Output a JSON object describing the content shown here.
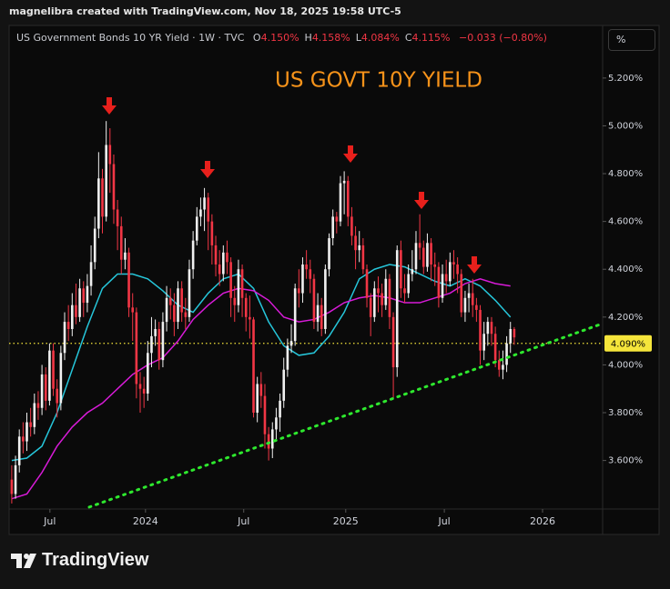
{
  "header": {
    "credit": "magnelibra created with TradingView.com, Nov 18, 2025 19:58 UTC-5"
  },
  "footer": {
    "brand": "TradingView"
  },
  "chart_data": {
    "type": "candlestick",
    "title": "US GOVT 10Y YIELD",
    "symbol": "US Government Bonds 10 YR Yield · 1W · TVC",
    "ohlc_legend": [
      {
        "key": "O",
        "value": "4.150%"
      },
      {
        "key": "H",
        "value": "4.158%"
      },
      {
        "key": "L",
        "value": "4.084%"
      },
      {
        "key": "C",
        "value": "4.115%"
      }
    ],
    "change": "−0.033 (−0.80%)",
    "unit_button": "%",
    "up_color": "#f0f0f0",
    "down_color": "#f23645",
    "open": [
      3.52,
      3.46,
      3.58,
      3.7,
      3.68,
      3.76,
      3.74,
      3.84,
      3.82,
      3.96,
      3.85,
      4.06,
      3.9,
      3.84,
      4.05,
      4.18,
      4.15,
      4.25,
      4.2,
      4.32,
      4.26,
      4.33,
      4.43,
      4.57,
      4.78,
      4.62,
      4.92,
      4.84,
      4.65,
      4.58,
      4.44,
      4.47,
      4.24,
      4.22,
      3.92,
      3.9,
      3.88,
      4.05,
      4.12,
      4.15,
      4.02,
      4.18,
      4.28,
      4.25,
      4.18,
      4.32,
      4.22,
      4.2,
      4.4,
      4.52,
      4.62,
      4.65,
      4.7,
      4.6,
      4.5,
      4.42,
      4.38,
      4.47,
      4.43,
      4.28,
      4.25,
      4.4,
      4.28,
      4.2,
      4.19,
      3.8,
      3.92,
      3.87,
      3.71,
      3.65,
      3.73,
      3.78,
      3.85,
      3.98,
      4.08,
      4.1,
      4.32,
      4.3,
      4.42,
      4.4,
      4.36,
      4.18,
      4.25,
      4.15,
      4.4,
      4.53,
      4.62,
      4.6,
      4.76,
      4.77,
      4.62,
      4.54,
      4.48,
      4.5,
      4.4,
      4.28,
      4.2,
      4.32,
      4.3,
      4.25,
      4.36,
      4.2,
      3.99,
      4.48,
      4.32,
      4.3,
      4.38,
      4.4,
      4.51,
      4.49,
      4.41,
      4.51,
      4.42,
      4.41,
      4.28,
      4.38,
      4.35,
      4.43,
      4.42,
      4.38,
      4.22,
      4.28,
      4.3,
      4.25,
      4.23,
      4.06,
      4.13,
      4.18,
      4.13,
      4.02,
      3.98,
      4.0,
      4.09,
      4.15
    ],
    "high": [
      3.58,
      3.62,
      3.73,
      3.76,
      3.8,
      3.82,
      3.88,
      3.89,
      4.0,
      3.99,
      4.09,
      4.09,
      3.94,
      4.08,
      4.22,
      4.25,
      4.3,
      4.34,
      4.36,
      4.35,
      4.38,
      4.5,
      4.62,
      4.89,
      4.82,
      5.02,
      4.99,
      4.88,
      4.69,
      4.62,
      4.53,
      4.49,
      4.3,
      4.24,
      3.97,
      3.95,
      4.1,
      4.2,
      4.19,
      4.18,
      4.22,
      4.33,
      4.32,
      4.3,
      4.35,
      4.35,
      4.28,
      4.44,
      4.56,
      4.66,
      4.7,
      4.74,
      4.72,
      4.63,
      4.54,
      4.48,
      4.5,
      4.52,
      4.45,
      4.33,
      4.44,
      4.42,
      4.3,
      4.29,
      4.2,
      3.95,
      3.97,
      3.92,
      3.74,
      3.76,
      3.82,
      3.88,
      4.03,
      4.11,
      4.17,
      4.34,
      4.4,
      4.45,
      4.48,
      4.44,
      4.38,
      4.3,
      4.28,
      4.42,
      4.55,
      4.65,
      4.64,
      4.79,
      4.81,
      4.79,
      4.66,
      4.58,
      4.56,
      4.53,
      4.42,
      4.3,
      4.35,
      4.37,
      4.34,
      4.4,
      4.38,
      4.22,
      4.5,
      4.52,
      4.38,
      4.42,
      4.48,
      4.56,
      4.63,
      4.52,
      4.55,
      4.53,
      4.47,
      4.43,
      4.42,
      4.44,
      4.47,
      4.48,
      4.45,
      4.4,
      4.31,
      4.34,
      4.36,
      4.28,
      4.25,
      4.18,
      4.2,
      4.2,
      4.16,
      4.06,
      4.06,
      4.12,
      4.18,
      4.158
    ],
    "low": [
      3.42,
      3.44,
      3.55,
      3.63,
      3.64,
      3.7,
      3.71,
      3.77,
      3.79,
      3.81,
      3.83,
      3.87,
      3.78,
      3.81,
      4.02,
      4.1,
      4.12,
      4.17,
      4.18,
      4.2,
      4.22,
      4.29,
      4.4,
      4.53,
      4.55,
      4.6,
      4.72,
      4.59,
      4.48,
      4.38,
      4.4,
      4.2,
      4.1,
      3.86,
      3.8,
      3.82,
      3.85,
      3.99,
      4.08,
      3.98,
      3.99,
      4.14,
      4.19,
      4.12,
      4.15,
      4.18,
      4.15,
      4.18,
      4.36,
      4.5,
      4.58,
      4.56,
      4.48,
      4.42,
      4.37,
      4.33,
      4.35,
      4.38,
      4.2,
      4.18,
      4.22,
      4.2,
      4.14,
      4.11,
      3.78,
      3.76,
      3.82,
      3.65,
      3.6,
      3.61,
      3.68,
      3.72,
      3.82,
      3.95,
      4.05,
      4.08,
      4.24,
      4.26,
      4.36,
      4.3,
      4.15,
      4.14,
      4.12,
      4.13,
      4.37,
      4.5,
      4.55,
      4.58,
      4.63,
      4.58,
      4.5,
      4.4,
      4.43,
      4.38,
      4.24,
      4.12,
      4.18,
      4.22,
      4.2,
      4.23,
      4.15,
      3.86,
      3.95,
      4.28,
      4.26,
      4.28,
      4.35,
      4.38,
      4.44,
      4.38,
      4.39,
      4.35,
      4.33,
      4.24,
      4.26,
      4.3,
      4.33,
      4.36,
      4.3,
      4.2,
      4.18,
      4.22,
      4.2,
      4.18,
      4.0,
      4.02,
      4.08,
      4.08,
      3.99,
      3.95,
      3.94,
      3.97,
      4.05,
      4.084
    ],
    "close": [
      3.46,
      3.58,
      3.7,
      3.68,
      3.76,
      3.74,
      3.84,
      3.82,
      3.96,
      3.85,
      4.06,
      3.9,
      3.84,
      4.05,
      4.18,
      4.15,
      4.25,
      4.2,
      4.32,
      4.26,
      4.33,
      4.43,
      4.57,
      4.78,
      4.62,
      4.92,
      4.84,
      4.65,
      4.58,
      4.44,
      4.47,
      4.24,
      4.22,
      3.92,
      3.9,
      3.88,
      4.05,
      4.12,
      4.15,
      4.02,
      4.18,
      4.28,
      4.25,
      4.18,
      4.32,
      4.22,
      4.2,
      4.4,
      4.52,
      4.62,
      4.65,
      4.7,
      4.6,
      4.5,
      4.42,
      4.38,
      4.47,
      4.43,
      4.28,
      4.25,
      4.4,
      4.28,
      4.2,
      4.19,
      3.8,
      3.92,
      3.87,
      3.71,
      3.65,
      3.73,
      3.78,
      3.85,
      3.98,
      4.08,
      4.1,
      4.32,
      4.3,
      4.42,
      4.4,
      4.36,
      4.18,
      4.25,
      4.15,
      4.4,
      4.53,
      4.62,
      4.6,
      4.76,
      4.77,
      4.62,
      4.54,
      4.48,
      4.5,
      4.4,
      4.28,
      4.2,
      4.32,
      4.3,
      4.25,
      4.36,
      4.2,
      3.99,
      4.48,
      4.32,
      4.3,
      4.38,
      4.4,
      4.51,
      4.49,
      4.41,
      4.51,
      4.42,
      4.41,
      4.28,
      4.38,
      4.35,
      4.43,
      4.42,
      4.38,
      4.22,
      4.28,
      4.3,
      4.25,
      4.23,
      4.06,
      4.13,
      4.18,
      4.13,
      4.02,
      3.98,
      4.0,
      4.09,
      4.15,
      4.115
    ],
    "series": [
      {
        "color": "#26c6da",
        "x": [
          0,
          4,
          8,
          12,
          16,
          20,
          24,
          28,
          32,
          36,
          40,
          44,
          48,
          52,
          56,
          60,
          64,
          68,
          72,
          76,
          80,
          84,
          88,
          92,
          96,
          100,
          104,
          108,
          112,
          116,
          120,
          124,
          128,
          132
        ],
        "values": [
          3.6,
          3.61,
          3.66,
          3.8,
          3.98,
          4.16,
          4.32,
          4.38,
          4.38,
          4.36,
          4.31,
          4.25,
          4.22,
          4.3,
          4.36,
          4.38,
          4.32,
          4.18,
          4.08,
          4.04,
          4.05,
          4.12,
          4.22,
          4.36,
          4.4,
          4.42,
          4.41,
          4.38,
          4.35,
          4.33,
          4.36,
          4.33,
          4.27,
          4.2
        ]
      },
      {
        "color": "#d81bd8",
        "x": [
          0,
          4,
          8,
          12,
          16,
          20,
          24,
          28,
          32,
          36,
          40,
          44,
          48,
          52,
          56,
          60,
          64,
          68,
          72,
          76,
          80,
          84,
          88,
          92,
          96,
          100,
          104,
          108,
          112,
          116,
          120,
          124,
          128,
          132
        ],
        "values": [
          3.44,
          3.46,
          3.55,
          3.66,
          3.74,
          3.8,
          3.84,
          3.9,
          3.96,
          4.0,
          4.03,
          4.1,
          4.19,
          4.25,
          4.3,
          4.32,
          4.31,
          4.27,
          4.2,
          4.18,
          4.19,
          4.22,
          4.26,
          4.28,
          4.29,
          4.28,
          4.26,
          4.26,
          4.28,
          4.3,
          4.34,
          4.36,
          4.34,
          4.33
        ]
      }
    ],
    "trendline": {
      "color": "#2ee82e",
      "x": [
        20.5,
        156.4
      ],
      "values": [
        3.405,
        4.173
      ]
    },
    "price_line": {
      "value": 4.09,
      "label": "4.090%",
      "color": "#f5e53b"
    },
    "xlim": [
      -0.7,
      156.4
    ],
    "xticks": [
      {
        "value": 10.1,
        "label": "Jul"
      },
      {
        "value": 35.4,
        "label": "2024"
      },
      {
        "value": 61.4,
        "label": "Jul"
      },
      {
        "value": 88.4,
        "label": "2025"
      },
      {
        "value": 114.5,
        "label": "Jul"
      },
      {
        "value": 140.5,
        "label": "2026"
      }
    ],
    "ylim": [
      3.397,
      5.42
    ],
    "yticks": [
      {
        "value": 3.6,
        "label": "3.600%"
      },
      {
        "value": 3.8,
        "label": "3.800%"
      },
      {
        "value": 4.0,
        "label": "4.000%"
      },
      {
        "value": 4.2,
        "label": "4.200%"
      },
      {
        "value": 4.4,
        "label": "4.400%"
      },
      {
        "value": 4.6,
        "label": "4.600%"
      },
      {
        "value": 4.8,
        "label": "4.800%"
      },
      {
        "value": 5.0,
        "label": "5.000%"
      },
      {
        "value": 5.2,
        "label": "5.200%"
      }
    ]
  }
}
